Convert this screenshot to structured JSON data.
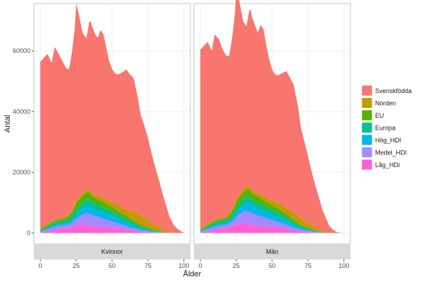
{
  "chart_data": {
    "type": "area",
    "stacked": true,
    "xlabel": "Ålder",
    "ylabel": "Antal",
    "xlim": [
      0,
      100
    ],
    "ylim": [
      0,
      72000
    ],
    "x_ticks": [
      0,
      25,
      50,
      75,
      100
    ],
    "y_ticks": [
      0,
      20000,
      40000,
      60000
    ],
    "y_tick_labels": [
      "0",
      "20000",
      "40000",
      "60000"
    ],
    "grid": true,
    "legend_position": "right",
    "x": [
      0,
      5,
      8,
      10,
      13,
      15,
      18,
      20,
      22,
      24,
      25,
      27,
      29,
      30,
      31,
      32,
      33,
      34,
      35,
      36,
      38,
      40,
      42,
      44,
      46,
      48,
      50,
      52,
      54,
      56,
      58,
      60,
      62,
      65,
      68,
      70,
      72,
      75,
      78,
      80,
      83,
      85,
      88,
      90,
      93,
      95,
      98,
      100
    ],
    "series_colors": [
      "#F8766D",
      "#C49A00",
      "#53B400",
      "#00C094",
      "#00B6EB",
      "#A58AFF",
      "#FB61D7"
    ],
    "series_names": [
      "Svenskfödda",
      "Norden",
      "EU",
      "Europa",
      "Hög_HDI",
      "Medel_HDI",
      "Låg_HDi"
    ],
    "panels": [
      {
        "label": "Kvinnor",
        "series": [
          {
            "name": "Svenskfödda",
            "values": [
              55000,
              56000,
              52000,
              57000,
              54000,
              52000,
              49000,
              48000,
              52000,
              58000,
              65000,
              60000,
              54000,
              52000,
              51000,
              50000,
              52000,
              55000,
              56000,
              55000,
              53000,
              52000,
              55000,
              54000,
              50000,
              46000,
              44000,
              43000,
              43000,
              44000,
              45000,
              46000,
              45000,
              44000,
              38000,
              33000,
              31000,
              27000,
              22000,
              19000,
              15000,
              12000,
              8000,
              5000,
              2500,
              1500,
              500,
              100
            ]
          },
          {
            "name": "Norden",
            "values": [
              300,
              500,
              500,
              400,
              400,
              400,
              400,
              400,
              500,
              700,
              800,
              900,
              900,
              900,
              900,
              900,
              900,
              900,
              900,
              900,
              1000,
              1100,
              1200,
              1300,
              1400,
              1500,
              1600,
              1700,
              1800,
              1900,
              2000,
              2200,
              2500,
              3000,
              3200,
              3000,
              2800,
              2500,
              2000,
              1800,
              1200,
              800,
              400,
              200,
              100,
              50,
              10,
              0
            ]
          },
          {
            "name": "EU",
            "values": [
              200,
              400,
              500,
              500,
              600,
              700,
              800,
              1000,
              1300,
              1700,
              2000,
              2200,
              2300,
              2300,
              2300,
              2300,
              2300,
              2300,
              2200,
              2100,
              2000,
              1900,
              1800,
              1700,
              1600,
              1500,
              1400,
              1300,
              1200,
              1100,
              1000,
              900,
              800,
              700,
              600,
              500,
              450,
              400,
              300,
              250,
              150,
              100,
              50,
              20,
              10,
              5,
              0,
              0
            ]
          },
          {
            "name": "Europa",
            "values": [
              300,
              600,
              800,
              900,
              900,
              900,
              1000,
              1100,
              1300,
              1600,
              1700,
              1800,
              1800,
              1900,
              2000,
              2100,
              2200,
              2200,
              2100,
              2000,
              1900,
              1900,
              1900,
              1800,
              1800,
              1700,
              1700,
              1600,
              1600,
              1500,
              1400,
              1300,
              1200,
              1000,
              800,
              700,
              600,
              500,
              350,
              250,
              150,
              100,
              50,
              20,
              10,
              0,
              0,
              0
            ]
          },
          {
            "name": "Hög_HDI",
            "values": [
              150,
              300,
              400,
              450,
              500,
              500,
              500,
              600,
              800,
              1100,
              1300,
              1600,
              1900,
              2100,
              2300,
              2400,
              2500,
              2500,
              2400,
              2300,
              2200,
              2100,
              2000,
              1900,
              1800,
              1700,
              1600,
              1500,
              1400,
              1300,
              1200,
              1100,
              1000,
              800,
              600,
              500,
              400,
              300,
              200,
              150,
              100,
              50,
              20,
              10,
              0,
              0,
              0,
              0
            ]
          },
          {
            "name": "Medel_HDI",
            "values": [
              250,
              600,
              900,
              1000,
              1100,
              1100,
              1100,
              1200,
              1500,
              1900,
              2200,
              2700,
              3200,
              3400,
              3600,
              3700,
              3800,
              3800,
              3700,
              3500,
              3300,
              3100,
              2900,
              2700,
              2500,
              2300,
              2100,
              1900,
              1700,
              1500,
              1300,
              1200,
              1000,
              800,
              600,
              500,
              400,
              300,
              200,
              150,
              100,
              50,
              20,
              10,
              0,
              0,
              0,
              0
            ]
          },
          {
            "name": "Låg_HDi",
            "values": [
              200,
              600,
              900,
              1100,
              1300,
              1400,
              1500,
              1700,
              2000,
              2300,
              2500,
              2700,
              2800,
              2800,
              2800,
              2700,
              2700,
              2600,
              2500,
              2400,
              2300,
              2200,
              2100,
              2000,
              1900,
              1800,
              1700,
              1600,
              1500,
              1400,
              1300,
              1200,
              1000,
              800,
              600,
              500,
              400,
              300,
              200,
              150,
              100,
              50,
              20,
              10,
              0,
              0,
              0,
              0
            ]
          }
        ]
      },
      {
        "label": "Män",
        "series": [
          {
            "name": "Svenskfödda",
            "values": [
              59000,
              60000,
              56000,
              61000,
              59000,
              56000,
              53000,
              52000,
              56000,
              62000,
              68000,
              64000,
              58000,
              55000,
              54000,
              53000,
              55000,
              58000,
              59000,
              57000,
              55000,
              53000,
              56000,
              55000,
              50000,
              46000,
              43000,
              42000,
              42000,
              43000,
              44000,
              45000,
              44000,
              42000,
              36000,
              30000,
              27000,
              22000,
              17000,
              14000,
              10000,
              7000,
              4000,
              2000,
              800,
              300,
              50,
              0
            ]
          },
          {
            "name": "Norden",
            "values": [
              300,
              500,
              500,
              400,
              400,
              400,
              400,
              400,
              500,
              700,
              800,
              900,
              900,
              900,
              900,
              900,
              900,
              900,
              900,
              900,
              1000,
              1100,
              1200,
              1300,
              1400,
              1500,
              1600,
              1700,
              1800,
              1900,
              2000,
              2100,
              2200,
              2400,
              2300,
              2100,
              1800,
              1500,
              1100,
              900,
              600,
              400,
              200,
              100,
              50,
              20,
              0,
              0
            ]
          },
          {
            "name": "EU",
            "values": [
              200,
              400,
              500,
              500,
              600,
              700,
              800,
              1000,
              1300,
              1700,
              2000,
              2300,
              2400,
              2400,
              2400,
              2400,
              2400,
              2400,
              2300,
              2200,
              2100,
              2000,
              1900,
              1800,
              1700,
              1600,
              1500,
              1400,
              1300,
              1200,
              1100,
              1000,
              900,
              800,
              650,
              550,
              450,
              350,
              250,
              200,
              100,
              60,
              30,
              10,
              0,
              0,
              0,
              0
            ]
          },
          {
            "name": "Europa",
            "values": [
              300,
              600,
              800,
              900,
              900,
              900,
              1000,
              1100,
              1300,
              1600,
              1700,
              1800,
              1900,
              2000,
              2100,
              2200,
              2300,
              2300,
              2200,
              2100,
              2000,
              2000,
              2000,
              1900,
              1900,
              1800,
              1800,
              1700,
              1700,
              1600,
              1500,
              1400,
              1200,
              1000,
              800,
              600,
              500,
              400,
              250,
              180,
              100,
              60,
              30,
              10,
              0,
              0,
              0,
              0
            ]
          },
          {
            "name": "Hög_HDI",
            "values": [
              150,
              300,
              400,
              450,
              500,
              500,
              500,
              600,
              800,
              1100,
              1300,
              1600,
              1900,
              2100,
              2300,
              2400,
              2500,
              2500,
              2400,
              2300,
              2200,
              2100,
              2000,
              1900,
              1800,
              1700,
              1600,
              1500,
              1400,
              1300,
              1200,
              1100,
              1000,
              800,
              600,
              500,
              400,
              300,
              200,
              150,
              100,
              50,
              20,
              10,
              0,
              0,
              0,
              0
            ]
          },
          {
            "name": "Medel_HDI",
            "values": [
              250,
              600,
              900,
              1000,
              1100,
              1100,
              1100,
              1200,
              1500,
              1900,
              2300,
              2900,
              3400,
              3700,
              3900,
              4000,
              4100,
              4100,
              4000,
              3800,
              3600,
              3300,
              3100,
              2900,
              2700,
              2500,
              2300,
              2100,
              1900,
              1700,
              1500,
              1300,
              1100,
              900,
              700,
              550,
              450,
              350,
              250,
              180,
              100,
              50,
              20,
              10,
              0,
              0,
              0,
              0
            ]
          },
          {
            "name": "Låg_HDi",
            "values": [
              200,
              600,
              900,
              1100,
              1300,
              1400,
              1600,
              1900,
              2300,
              2700,
              3000,
              3200,
              3300,
              3300,
              3300,
              3200,
              3100,
              3000,
              2900,
              2800,
              2600,
              2500,
              2400,
              2300,
              2200,
              2100,
              2000,
              1900,
              1800,
              1700,
              1600,
              1400,
              1200,
              900,
              700,
              550,
              450,
              350,
              250,
              180,
              100,
              50,
              20,
              10,
              0,
              0,
              0,
              0
            ]
          }
        ]
      }
    ]
  }
}
